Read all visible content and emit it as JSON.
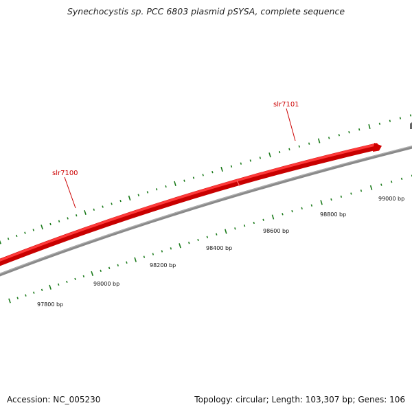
{
  "title": "Synechocystis sp. PCC 6803 plasmid pSYSA, complete sequence",
  "footer": {
    "accession": "Accession: NC_005230",
    "summary": "Topology: circular; Length: 103,307 bp; Genes: 106"
  },
  "genes": [
    {
      "name": "slr7100",
      "color": "#cc0000"
    },
    {
      "name": "slr7101",
      "color": "#cc0000"
    }
  ],
  "scale": {
    "ticks": [
      "97800 bp",
      "98000 bp",
      "98200 bp",
      "98400 bp",
      "98600 bp",
      "98800 bp",
      "99000 bp"
    ]
  },
  "colors": {
    "backbone": "#888888",
    "gene_fill": "#ee1111",
    "tick": "#1a7a1a",
    "label": "#cc0000"
  }
}
